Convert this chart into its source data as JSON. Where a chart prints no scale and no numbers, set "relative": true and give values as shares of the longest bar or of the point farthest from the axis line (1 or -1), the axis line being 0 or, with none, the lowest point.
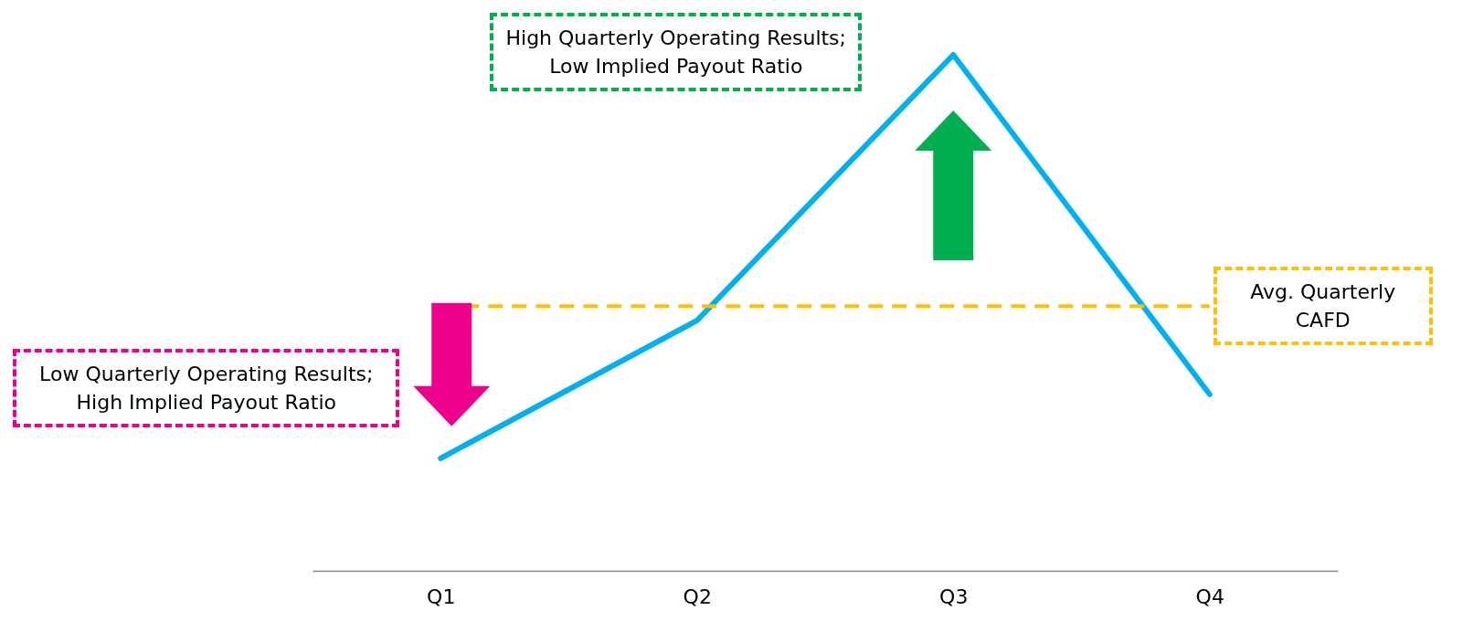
{
  "chart_data": {
    "type": "line",
    "relative": true,
    "tick_labels": "x",
    "categories": [
      "Q1",
      "Q2",
      "Q3",
      "Q4"
    ],
    "series": [
      {
        "color": "#00b0f0",
        "values": [
          0.218,
          0.485,
          1,
          0.342
        ]
      }
    ],
    "marker": "none",
    "line_style": "solid",
    "ref_lines": [
      {
        "axis": "y",
        "value": 0.513,
        "label": "Avg. Quarterly CAFD",
        "color": "#ffc000",
        "line_style": "dashed"
      }
    ],
    "annotations": [
      "Low Quarterly Operating Results; High Implied Payout Ratio",
      "High Quarterly Operating Results; Low Implied Payout Ratio"
    ]
  }
}
